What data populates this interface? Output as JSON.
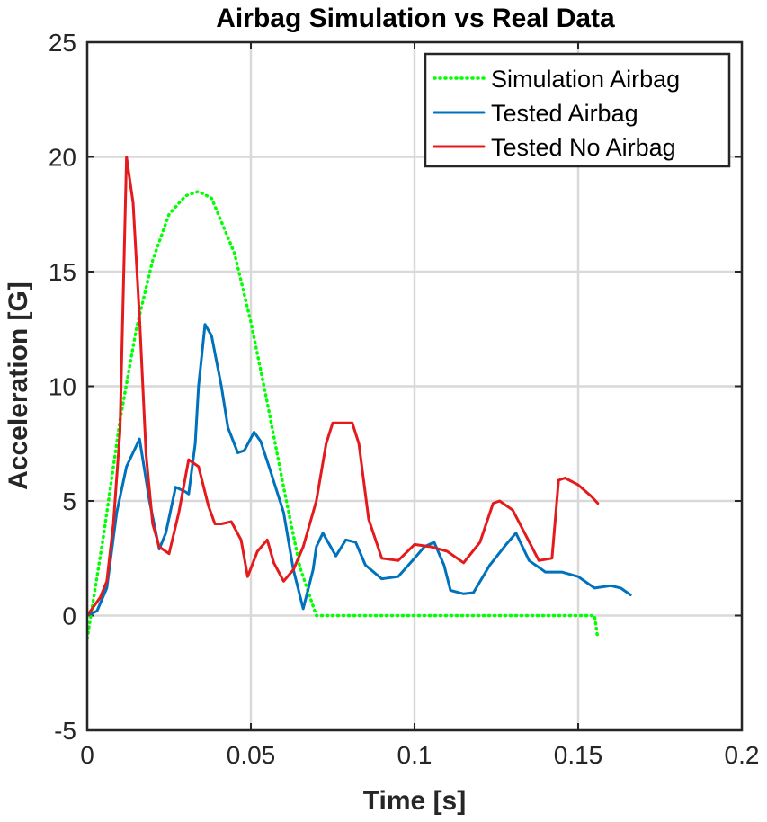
{
  "chart_data": {
    "type": "line",
    "title": "Airbag Simulation vs Real Data",
    "xlabel": "Time [s]",
    "ylabel": "Acceleration [G]",
    "xlim": [
      0,
      0.2
    ],
    "ylim": [
      -5,
      25
    ],
    "xticks": [
      0,
      0.05,
      0.1,
      0.15,
      0.2
    ],
    "xtick_labels": [
      "0",
      "0.05",
      "0.1",
      "0.15",
      "0.2"
    ],
    "yticks": [
      -5,
      0,
      5,
      10,
      15,
      20,
      25
    ],
    "ytick_labels": [
      "-5",
      "0",
      "5",
      "10",
      "15",
      "20",
      "25"
    ],
    "grid": true,
    "legend_position": "top-right",
    "series": [
      {
        "name": "Simulation Airbag",
        "color": "#00ff00",
        "style": "dotted",
        "x": [
          0,
          0.002,
          0.005,
          0.01,
          0.015,
          0.02,
          0.025,
          0.03,
          0.034,
          0.038,
          0.045,
          0.05,
          0.055,
          0.06,
          0.065,
          0.07,
          0.075,
          0.1,
          0.12,
          0.14,
          0.155,
          0.1555,
          0.156
        ],
        "y": [
          -1,
          0.8,
          3.5,
          8.5,
          12.5,
          15.5,
          17.5,
          18.3,
          18.5,
          18.2,
          15.8,
          12.8,
          9.3,
          5.6,
          2.1,
          0,
          0,
          0,
          0,
          0,
          0,
          -0.5,
          -1
        ]
      },
      {
        "name": "Tested Airbag",
        "color": "#0072bd",
        "style": "solid",
        "x": [
          0,
          0.003,
          0.006,
          0.009,
          0.012,
          0.016,
          0.019,
          0.022,
          0.024,
          0.027,
          0.03,
          0.031,
          0.033,
          0.034,
          0.036,
          0.038,
          0.041,
          0.043,
          0.046,
          0.048,
          0.051,
          0.053,
          0.056,
          0.06,
          0.063,
          0.066,
          0.069,
          0.07,
          0.072,
          0.076,
          0.079,
          0.082,
          0.085,
          0.09,
          0.095,
          0.1,
          0.103,
          0.106,
          0.109,
          0.111,
          0.115,
          0.118,
          0.123,
          0.128,
          0.131,
          0.135,
          0.14,
          0.145,
          0.15,
          0.155,
          0.16,
          0.163,
          0.166
        ],
        "y": [
          0,
          0.2,
          1.2,
          4.5,
          6.5,
          7.7,
          5.0,
          2.9,
          3.6,
          5.6,
          5.4,
          5.3,
          7.5,
          10,
          12.7,
          12.2,
          10,
          8.2,
          7.1,
          7.2,
          8.0,
          7.6,
          6.3,
          4.5,
          2.0,
          0.3,
          2.0,
          3.0,
          3.6,
          2.6,
          3.3,
          3.2,
          2.2,
          1.6,
          1.7,
          2.5,
          3.0,
          3.2,
          2.2,
          1.1,
          0.95,
          1.0,
          2.2,
          3.1,
          3.6,
          2.4,
          1.9,
          1.9,
          1.7,
          1.2,
          1.3,
          1.2,
          0.9
        ]
      },
      {
        "name": "Tested No Airbag",
        "color": "#e41a1c",
        "style": "solid",
        "x": [
          0,
          0.004,
          0.006,
          0.008,
          0.01,
          0.012,
          0.014,
          0.016,
          0.018,
          0.02,
          0.022,
          0.025,
          0.028,
          0.031,
          0.034,
          0.037,
          0.039,
          0.041,
          0.044,
          0.047,
          0.049,
          0.052,
          0.055,
          0.057,
          0.06,
          0.063,
          0.066,
          0.07,
          0.073,
          0.075,
          0.077,
          0.081,
          0.083,
          0.086,
          0.09,
          0.095,
          0.1,
          0.105,
          0.11,
          0.115,
          0.12,
          0.124,
          0.126,
          0.13,
          0.134,
          0.138,
          0.142,
          0.144,
          0.146,
          0.15,
          0.154,
          0.156
        ],
        "y": [
          0,
          0.8,
          1.5,
          4.0,
          8.0,
          20.0,
          18.0,
          13.0,
          7.0,
          4.0,
          3.0,
          2.7,
          4.5,
          6.8,
          6.5,
          4.8,
          4.0,
          4.0,
          4.1,
          3.3,
          1.7,
          2.8,
          3.3,
          2.3,
          1.5,
          2.0,
          3.0,
          5.0,
          7.5,
          8.4,
          8.4,
          8.4,
          7.5,
          4.2,
          2.5,
          2.4,
          3.1,
          3.0,
          2.8,
          2.3,
          3.2,
          4.9,
          5.0,
          4.6,
          3.5,
          2.4,
          2.5,
          5.9,
          6.0,
          5.7,
          5.2,
          4.9
        ]
      }
    ]
  }
}
